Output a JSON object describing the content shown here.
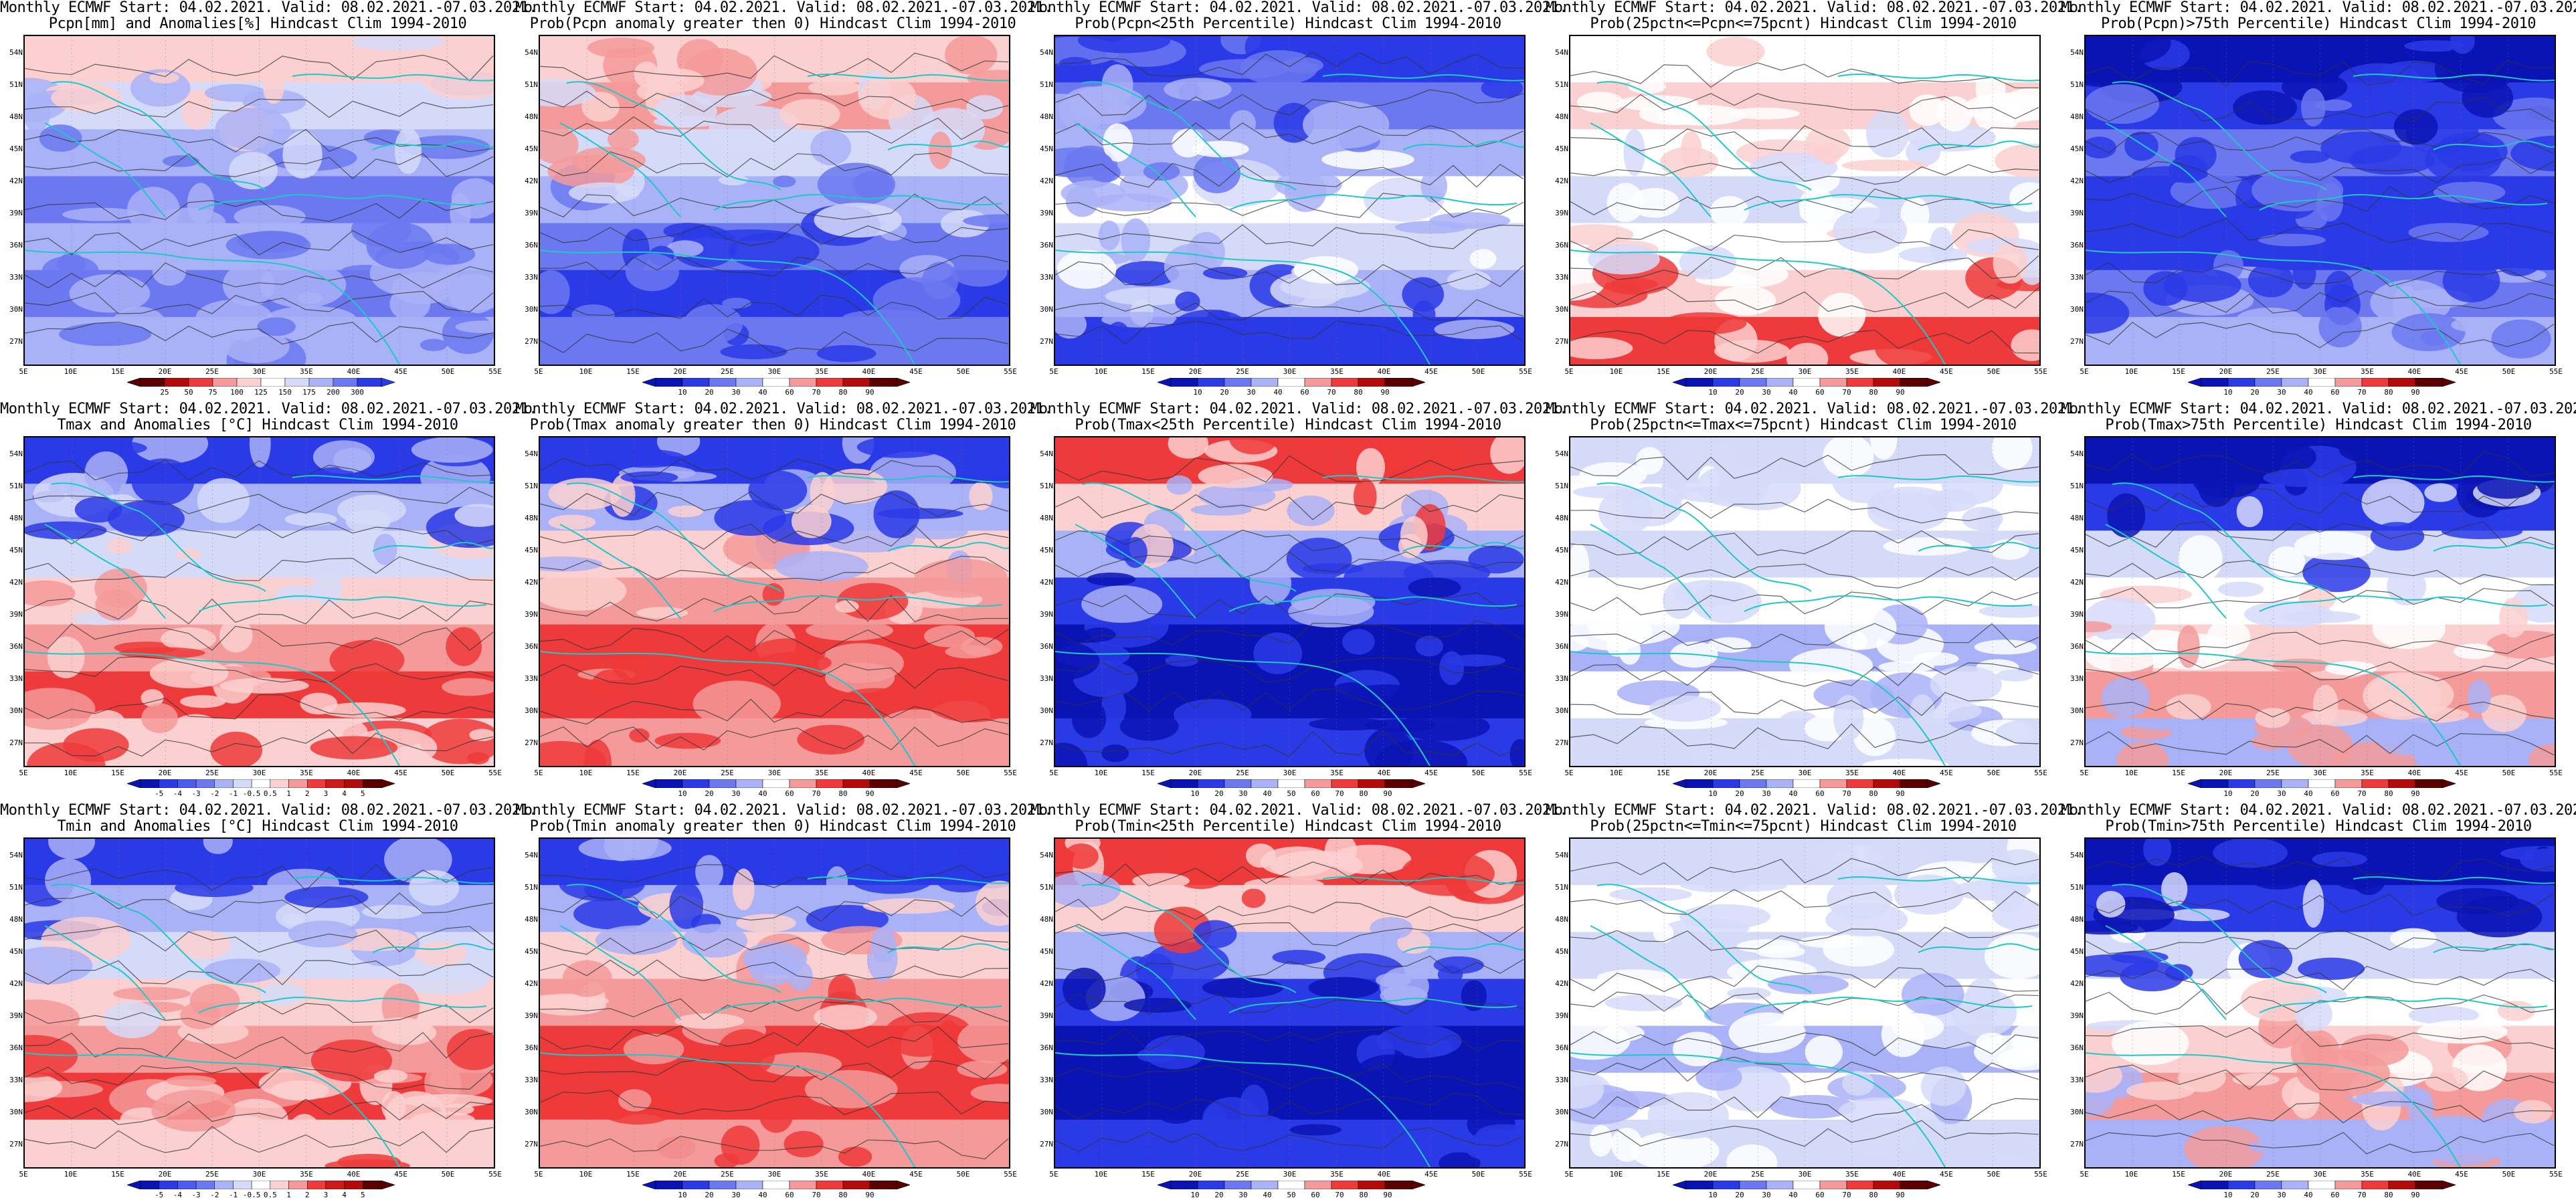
{
  "model": "Monthly ECMWF",
  "start": "04.02.2021.",
  "valid": "08.02.2021.-07.03.2021.",
  "panels": [
    {
      "line1": "Monthly ECMWF Start: 04.02.2021. Valid: 08.02.2021.-07.03.2021.",
      "line2": "Pcpn[mm] and Anomalies[%] Hindcast Clim 1994-2010",
      "scheme": "pcpn",
      "ticks": [
        "25",
        "50",
        "75",
        "100",
        "125",
        "150",
        "175",
        "200",
        "300"
      ]
    },
    {
      "line1": "Monthly ECMWF Start: 04.02.2021. Valid: 08.02.2021.-07.03.2021.",
      "line2": "Prob(Pcpn anomaly greater then 0) Hindcast Clim 1994-2010",
      "scheme": "pcpn_prob",
      "ticks": [
        "10",
        "20",
        "30",
        "40",
        "60",
        "70",
        "80",
        "90"
      ]
    },
    {
      "line1": "Monthly ECMWF Start: 04.02.2021. Valid: 08.02.2021.-07.03.2021.",
      "line2": "Prob(Pcpn<25th Percentile) Hindcast Clim 1994-2010",
      "scheme": "pcpn_low",
      "ticks": [
        "10",
        "20",
        "30",
        "40",
        "60",
        "70",
        "80",
        "90"
      ]
    },
    {
      "line1": "Monthly ECMWF Start: 04.02.2021. Valid: 08.02.2021.-07.03.2021.",
      "line2": "Prob(25pctn<=Pcpn<=75pcnt) Hindcast Clim 1994-2010",
      "scheme": "pcpn_mid",
      "ticks": [
        "10",
        "20",
        "30",
        "40",
        "60",
        "70",
        "80",
        "90"
      ]
    },
    {
      "line1": "Monthly ECMWF Start: 04.02.2021. Valid: 08.02.2021.-07.03.2021.",
      "line2": "Prob(Pcpn)>75th Percentile) Hindcast Clim 1994-2010",
      "scheme": "pcpn_high",
      "ticks": [
        "10",
        "20",
        "30",
        "40",
        "60",
        "70",
        "80",
        "90"
      ]
    },
    {
      "line1": "Monthly ECMWF Start: 04.02.2021. Valid: 08.02.2021.-07.03.2021.",
      "line2": "Tmax and Anomalies [°C] Hindcast Clim 1994-2010",
      "scheme": "t_anom",
      "ticks": [
        "-5",
        "-4",
        "-3",
        "-2",
        "-1",
        "-0.5",
        "0.5",
        "1",
        "2",
        "3",
        "4",
        "5"
      ]
    },
    {
      "line1": "Monthly ECMWF Start: 04.02.2021. Valid: 08.02.2021.-07.03.2021.",
      "line2": "Prob(Tmax anomaly greater then 0) Hindcast Clim 1994-2010",
      "scheme": "t_warm",
      "ticks": [
        "10",
        "20",
        "30",
        "40",
        "60",
        "70",
        "80",
        "90"
      ]
    },
    {
      "line1": "Monthly ECMWF Start: 04.02.2021. Valid: 08.02.2021.-07.03.2021.",
      "line2": "Prob(Tmax<25th Percentile) Hindcast Clim 1994-2010",
      "scheme": "t_cold",
      "ticks": [
        "10",
        "20",
        "30",
        "40",
        "50",
        "60",
        "70",
        "80",
        "90"
      ]
    },
    {
      "line1": "Monthly ECMWF Start: 04.02.2021. Valid: 08.02.2021.-07.03.2021.",
      "line2": "Prob(25pctn<=Tmax<=75pcnt) Hindcast Clim 1994-2010",
      "scheme": "t_mid",
      "ticks": [
        "10",
        "20",
        "30",
        "40",
        "60",
        "70",
        "80",
        "90"
      ]
    },
    {
      "line1": "Monthly ECMWF Start: 04.02.2021. Valid: 08.02.2021.-07.03.2021.",
      "line2": "Prob(Tmax>75th Percentile) Hindcast Clim 1994-2010",
      "scheme": "t_high",
      "ticks": [
        "10",
        "20",
        "30",
        "40",
        "60",
        "70",
        "80",
        "90"
      ]
    },
    {
      "line1": "Monthly ECMWF Start: 04.02.2021. Valid: 08.02.2021.-07.03.2021.",
      "line2": "Tmin and Anomalies [°C] Hindcast Clim 1994-2010",
      "scheme": "t_anom",
      "ticks": [
        "-5",
        "-4",
        "-3",
        "-2",
        "-1",
        "-0.5",
        "0.5",
        "1",
        "2",
        "3",
        "4",
        "5"
      ]
    },
    {
      "line1": "Monthly ECMWF Start: 04.02.2021. Valid: 08.02.2021.-07.03.2021.",
      "line2": "Prob(Tmin anomaly greater then 0) Hindcast Clim 1994-2010",
      "scheme": "t_warm",
      "ticks": [
        "10",
        "20",
        "30",
        "40",
        "60",
        "70",
        "80",
        "90"
      ]
    },
    {
      "line1": "Monthly ECMWF Start: 04.02.2021. Valid: 08.02.2021.-07.03.2021.",
      "line2": "Prob(Tmin<25th Percentile) Hindcast Clim 1994-2010",
      "scheme": "t_cold",
      "ticks": [
        "10",
        "20",
        "30",
        "40",
        "50",
        "60",
        "70",
        "80",
        "90"
      ]
    },
    {
      "line1": "Monthly ECMWF Start: 04.02.2021. Valid: 08.02.2021.-07.03.2021.",
      "line2": "Prob(25pctn<=Tmin<=75pcnt) Hindcast Clim 1994-2010",
      "scheme": "t_mid",
      "ticks": [
        "10",
        "20",
        "30",
        "40",
        "60",
        "70",
        "80",
        "90"
      ]
    },
    {
      "line1": "Monthly ECMWF Start: 04.02.2021. Valid: 08.02.2021.-07.03.2021.",
      "line2": "Prob(Tmin>75th Percentile) Hindcast Clim 1994-2010",
      "scheme": "t_high",
      "ticks": [
        "10",
        "20",
        "30",
        "40",
        "60",
        "70",
        "80",
        "90"
      ]
    }
  ],
  "lat_labels": [
    "54N",
    "51N",
    "48N",
    "45N",
    "42N",
    "39N",
    "36N",
    "33N",
    "30N",
    "27N"
  ],
  "lon_labels": [
    "5E",
    "10E",
    "15E",
    "20E",
    "25E",
    "30E",
    "35E",
    "40E",
    "45E",
    "50E",
    "55E"
  ],
  "colors": {
    "deep_blue": "#0a14b4",
    "blue": "#2a3ae6",
    "mid_blue": "#6b78f0",
    "light_blue": "#aab2f7",
    "pale_blue": "#d6daf9",
    "white": "#ffffff",
    "pale_red": "#fbd0d0",
    "light_red": "#f59a9a",
    "red": "#ee3a3a",
    "deep_red": "#b40a0a",
    "coast": "#1fc8c8",
    "contour": "#333333"
  }
}
